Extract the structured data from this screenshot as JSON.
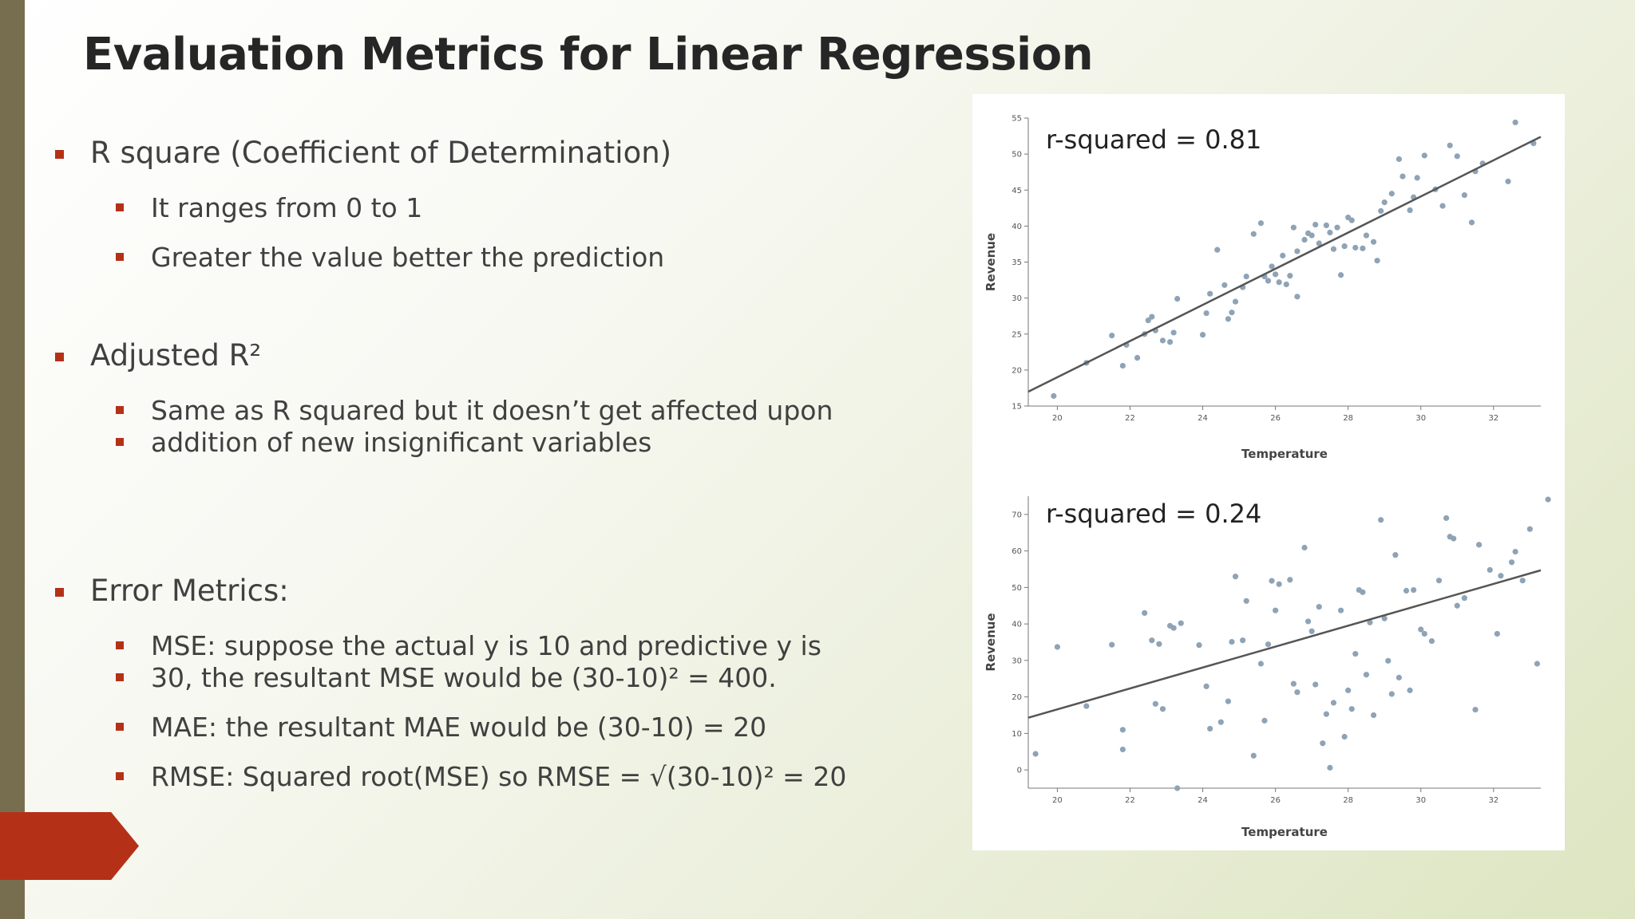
{
  "slide": {
    "title": "Evaluation Metrics for Linear Regression",
    "bullets": [
      {
        "text": "R square (Coefficient of Determination)",
        "subs": [
          "It ranges from 0 to 1",
          "Greater the value better the prediction"
        ]
      },
      {
        "text": "Adjusted R²",
        "subs": [
          "Same as R squared but it doesn’t get affected upon",
          "addition of new insignificant variables"
        ]
      },
      {
        "text": "Error Metrics:",
        "subs": [
          "MSE: suppose the actual y is 10 and predictive y is",
          "30, the resultant MSE would be (30-10)² = 400.",
          "MAE: the resultant MAE would be (30-10) = 20",
          "RMSE: Squared root(MSE) so RMSE = √(30-10)² = 20"
        ]
      }
    ],
    "colors": {
      "accent": "#b43117",
      "sidebar": "#776e50",
      "text": "#404040",
      "title": "#262626"
    }
  },
  "chart_data": [
    {
      "type": "scatter",
      "annotation": "r-squared = 0.81",
      "xlabel": "Temperature",
      "ylabel": "Revenue",
      "xlim": [
        19.2,
        33.3
      ],
      "ylim": [
        15,
        55
      ],
      "xticks": [
        20,
        22,
        24,
        26,
        28,
        30,
        32
      ],
      "yticks": [
        15,
        20,
        25,
        30,
        35,
        40,
        45,
        50,
        55
      ],
      "trendline": {
        "x": [
          19.2,
          33.3
        ],
        "y": [
          17.0,
          52.4
        ]
      },
      "points": [
        [
          19.9,
          16.4
        ],
        [
          20.8,
          21.0
        ],
        [
          21.5,
          24.8
        ],
        [
          21.8,
          20.6
        ],
        [
          21.9,
          23.5
        ],
        [
          22.2,
          21.7
        ],
        [
          22.4,
          25.0
        ],
        [
          22.5,
          26.9
        ],
        [
          22.6,
          27.4
        ],
        [
          22.7,
          25.5
        ],
        [
          22.9,
          24.1
        ],
        [
          23.1,
          23.9
        ],
        [
          23.2,
          25.2
        ],
        [
          23.3,
          29.9
        ],
        [
          24.0,
          24.9
        ],
        [
          24.1,
          27.9
        ],
        [
          24.2,
          30.6
        ],
        [
          24.4,
          36.7
        ],
        [
          24.6,
          31.8
        ],
        [
          24.7,
          27.1
        ],
        [
          24.8,
          28.0
        ],
        [
          24.9,
          29.5
        ],
        [
          25.1,
          31.5
        ],
        [
          25.2,
          33.0
        ],
        [
          25.4,
          38.9
        ],
        [
          25.6,
          40.4
        ],
        [
          25.7,
          33.0
        ],
        [
          25.8,
          32.4
        ],
        [
          25.9,
          34.4
        ],
        [
          26.0,
          33.3
        ],
        [
          26.1,
          32.2
        ],
        [
          26.2,
          35.9
        ],
        [
          26.3,
          31.9
        ],
        [
          26.4,
          33.1
        ],
        [
          26.5,
          39.8
        ],
        [
          26.6,
          36.5
        ],
        [
          26.6,
          30.2
        ],
        [
          26.8,
          38.1
        ],
        [
          26.9,
          39.0
        ],
        [
          27.0,
          38.7
        ],
        [
          27.1,
          40.2
        ],
        [
          27.2,
          37.6
        ],
        [
          27.4,
          40.1
        ],
        [
          27.5,
          39.1
        ],
        [
          27.6,
          36.8
        ],
        [
          27.7,
          39.8
        ],
        [
          27.8,
          33.2
        ],
        [
          27.9,
          37.2
        ],
        [
          28.0,
          41.2
        ],
        [
          28.1,
          40.8
        ],
        [
          28.2,
          37.0
        ],
        [
          28.4,
          36.9
        ],
        [
          28.5,
          38.7
        ],
        [
          28.7,
          37.8
        ],
        [
          28.8,
          35.2
        ],
        [
          28.9,
          42.1
        ],
        [
          29.0,
          43.3
        ],
        [
          29.2,
          44.5
        ],
        [
          29.4,
          49.3
        ],
        [
          29.5,
          46.9
        ],
        [
          29.7,
          42.2
        ],
        [
          29.8,
          44.0
        ],
        [
          29.9,
          46.7
        ],
        [
          30.1,
          49.8
        ],
        [
          30.4,
          45.1
        ],
        [
          30.6,
          42.8
        ],
        [
          30.8,
          51.2
        ],
        [
          31.0,
          49.7
        ],
        [
          31.2,
          44.3
        ],
        [
          31.4,
          40.5
        ],
        [
          31.5,
          47.6
        ],
        [
          31.7,
          48.7
        ],
        [
          32.4,
          46.2
        ],
        [
          32.6,
          54.4
        ],
        [
          33.1,
          51.5
        ]
      ]
    },
    {
      "type": "scatter",
      "annotation": "r-squared = 0.24",
      "xlabel": "Temperature",
      "ylabel": "Revenue",
      "xlim": [
        19.2,
        33.3
      ],
      "ylim": [
        -5,
        75
      ],
      "xticks": [
        20,
        22,
        24,
        26,
        28,
        30,
        32
      ],
      "yticks": [
        0,
        10,
        20,
        30,
        40,
        50,
        60,
        70
      ],
      "trendline": {
        "x": [
          19.2,
          33.3
        ],
        "y": [
          14.3,
          54.7
        ]
      },
      "points": [
        [
          19.4,
          4.4
        ],
        [
          20.0,
          33.7
        ],
        [
          20.8,
          17.5
        ],
        [
          21.5,
          34.3
        ],
        [
          21.8,
          11.0
        ],
        [
          21.8,
          5.6
        ],
        [
          22.4,
          43.0
        ],
        [
          22.6,
          35.5
        ],
        [
          22.7,
          18.1
        ],
        [
          22.8,
          34.5
        ],
        [
          22.9,
          16.7
        ],
        [
          23.1,
          39.5
        ],
        [
          23.2,
          38.9
        ],
        [
          23.4,
          40.2
        ],
        [
          23.3,
          -5.0
        ],
        [
          23.9,
          34.2
        ],
        [
          24.1,
          22.9
        ],
        [
          24.2,
          11.3
        ],
        [
          24.5,
          13.1
        ],
        [
          24.7,
          18.8
        ],
        [
          24.8,
          35.1
        ],
        [
          24.9,
          53.0
        ],
        [
          25.1,
          35.5
        ],
        [
          25.2,
          46.3
        ],
        [
          25.4,
          3.9
        ],
        [
          25.6,
          29.1
        ],
        [
          25.7,
          13.5
        ],
        [
          25.8,
          34.4
        ],
        [
          25.9,
          51.8
        ],
        [
          26.0,
          43.7
        ],
        [
          26.1,
          50.9
        ],
        [
          26.4,
          52.1
        ],
        [
          26.5,
          23.6
        ],
        [
          26.6,
          21.3
        ],
        [
          26.8,
          60.9
        ],
        [
          26.9,
          40.7
        ],
        [
          27.0,
          38.0
        ],
        [
          27.1,
          23.4
        ],
        [
          27.2,
          44.7
        ],
        [
          27.3,
          7.3
        ],
        [
          27.4,
          15.3
        ],
        [
          27.5,
          0.6
        ],
        [
          27.6,
          18.4
        ],
        [
          27.8,
          43.7
        ],
        [
          27.9,
          9.1
        ],
        [
          28.0,
          21.8
        ],
        [
          28.1,
          16.7
        ],
        [
          28.2,
          31.8
        ],
        [
          28.3,
          49.3
        ],
        [
          28.4,
          48.7
        ],
        [
          28.5,
          26.1
        ],
        [
          28.6,
          40.4
        ],
        [
          28.7,
          15.0
        ],
        [
          28.9,
          68.5
        ],
        [
          29.0,
          41.5
        ],
        [
          29.1,
          29.9
        ],
        [
          29.2,
          20.8
        ],
        [
          29.3,
          58.9
        ],
        [
          29.4,
          25.3
        ],
        [
          29.6,
          49.1
        ],
        [
          29.7,
          21.8
        ],
        [
          29.8,
          49.3
        ],
        [
          30.0,
          38.5
        ],
        [
          30.1,
          37.3
        ],
        [
          30.3,
          35.3
        ],
        [
          30.5,
          51.9
        ],
        [
          30.7,
          69.0
        ],
        [
          30.8,
          63.9
        ],
        [
          30.9,
          63.4
        ],
        [
          31.0,
          45.0
        ],
        [
          31.2,
          47.1
        ],
        [
          31.5,
          16.5
        ],
        [
          31.6,
          61.7
        ],
        [
          31.9,
          54.8
        ],
        [
          32.1,
          37.3
        ],
        [
          32.2,
          53.2
        ],
        [
          32.5,
          56.9
        ],
        [
          32.6,
          59.8
        ],
        [
          32.8,
          51.9
        ],
        [
          33.0,
          66.0
        ],
        [
          33.2,
          29.1
        ],
        [
          33.5,
          74.1
        ]
      ]
    }
  ]
}
